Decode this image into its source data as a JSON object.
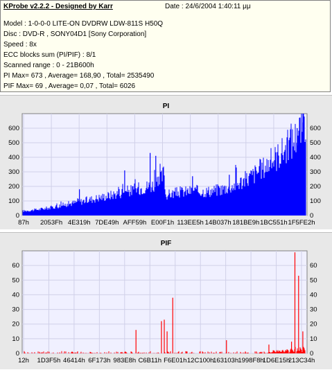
{
  "header": {
    "title": "KProbe v2.2.2 - Designed by Karr",
    "date": "Date : 24/6/2004 1:40:11 μμ",
    "lines": [
      "Model : 1-0-0-0 LITE-ON DVDRW LDW-811S   H50Q",
      "Disc : DVD-R , SONY04D1 [Sony Corporation]",
      "Speed : 8x",
      "ECC blocks sum (PI/PIF) : 8/1",
      "Scanned range : 0 - 21B600h",
      "PI Max= 673 , Average= 168,90 , Total= 2535490",
      "PIF Max= 69 , Average= 0,07 , Total= 6026"
    ]
  },
  "chart_data": [
    {
      "type": "bar",
      "title": "PI",
      "color": "#0000ff",
      "ylim": [
        0,
        700
      ],
      "yticks": [
        "0",
        "100",
        "200",
        "300",
        "400",
        "500",
        "600"
      ],
      "xticks": [
        "87h",
        "2053Fh",
        "4E319h",
        "7DE49h",
        "AFF59h",
        "E00F1h",
        "113EE5h",
        "14B037h",
        "181BE9h",
        "1BC551h",
        "1F5FE2h"
      ],
      "profile": [
        [
          0,
          30
        ],
        [
          0.05,
          40
        ],
        [
          0.1,
          55
        ],
        [
          0.15,
          75
        ],
        [
          0.2,
          95
        ],
        [
          0.25,
          115
        ],
        [
          0.3,
          135
        ],
        [
          0.35,
          160
        ],
        [
          0.4,
          180
        ],
        [
          0.45,
          205
        ],
        [
          0.48,
          215
        ],
        [
          0.5,
          300
        ],
        [
          0.505,
          140
        ],
        [
          0.55,
          160
        ],
        [
          0.6,
          170
        ],
        [
          0.65,
          165
        ],
        [
          0.7,
          180
        ],
        [
          0.75,
          210
        ],
        [
          0.8,
          260
        ],
        [
          0.85,
          330
        ],
        [
          0.9,
          410
        ],
        [
          0.95,
          500
        ],
        [
          0.98,
          590
        ],
        [
          1.0,
          620
        ]
      ],
      "peaks": [
        [
          0.45,
          430
        ],
        [
          0.47,
          410
        ],
        [
          0.36,
          310
        ],
        [
          0.2,
          180
        ],
        [
          0.73,
          280
        ],
        [
          0.6,
          270
        ],
        [
          0.98,
          673
        ],
        [
          0.99,
          640
        ],
        [
          0.97,
          600
        ]
      ]
    },
    {
      "type": "bar",
      "title": "PIF",
      "color": "#ff0000",
      "ylim": [
        0,
        70
      ],
      "yticks": [
        "0",
        "10",
        "20",
        "30",
        "40",
        "50",
        "60"
      ],
      "xticks": [
        "12h",
        "1D3F5h",
        "46414h",
        "6F173h",
        "983E8h",
        "C6B11h",
        "F6E01h",
        "12C100h",
        "163103h",
        "1998F8h",
        "1D6E15h",
        "213C34h"
      ],
      "peaks": [
        [
          0.4,
          16
        ],
        [
          0.49,
          22
        ],
        [
          0.5,
          23
        ],
        [
          0.51,
          15
        ],
        [
          0.53,
          38
        ],
        [
          0.72,
          9
        ],
        [
          0.87,
          6
        ],
        [
          0.95,
          8
        ],
        [
          0.962,
          69
        ],
        [
          0.975,
          53
        ],
        [
          0.99,
          15
        ]
      ]
    }
  ]
}
